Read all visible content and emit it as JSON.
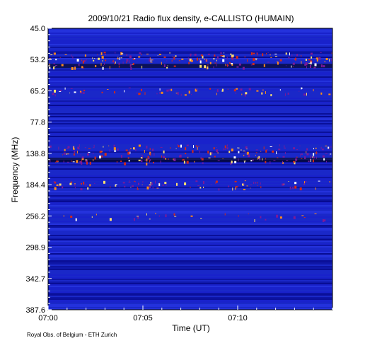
{
  "chart_data": {
    "type": "heatmap",
    "title": "2009/10/21  Radio flux density, e-CALLISTO (HUMAIN)",
    "xlabel": "Time (UT)",
    "ylabel": "Frequency (MHz)",
    "x_ticks": [
      "07:00",
      "07:05",
      "07:10"
    ],
    "x_tick_minutes": [
      0,
      5,
      10
    ],
    "xlim_minutes": [
      0,
      15
    ],
    "y_ticks": [
      "45.0",
      "53.2",
      "65.2",
      "77.8",
      "138.8",
      "184.4",
      "256.2",
      "298.9",
      "342.7",
      "387.6"
    ],
    "y_tick_order": [
      0,
      1,
      2,
      3,
      4,
      5,
      6,
      7,
      8,
      9
    ],
    "y_inverted": true,
    "colormap": [
      "#00007a",
      "#1a1ad0",
      "#2e3cf0",
      "#7a1a9a",
      "#d22a1a",
      "#ff8c1a",
      "#ffe070",
      "#ffffff"
    ],
    "background_color": "#1a28c8",
    "bright_bands": [
      {
        "near_tick": "53.2",
        "description": "strong emission lane (dark/red/orange)"
      },
      {
        "near_tick": "65.2",
        "description": "intermittent bright bursts"
      },
      {
        "near_tick": "138.8",
        "description": "broadband bright bursts (white/yellow)"
      },
      {
        "near_tick": "184.4",
        "description": "moderate emission"
      },
      {
        "near_tick": "256.2",
        "description": "isolated orange features"
      }
    ]
  },
  "credit": "Royal Obs. of Belgium - ETH Zurich"
}
